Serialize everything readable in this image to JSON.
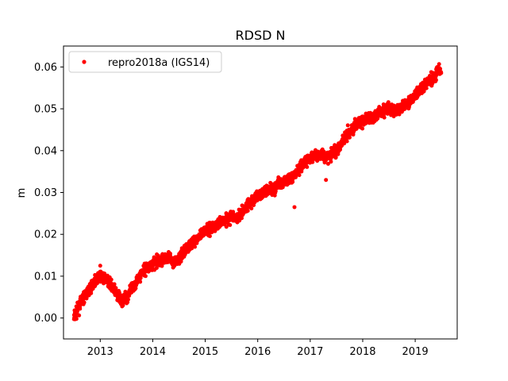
{
  "chart_data": {
    "type": "scatter",
    "title": "RDSD N",
    "xlabel": "",
    "ylabel": "m",
    "xlim": [
      2012.3,
      2019.8
    ],
    "ylim": [
      -0.005,
      0.065
    ],
    "x_ticks": [
      2013,
      2014,
      2015,
      2016,
      2017,
      2018,
      2019
    ],
    "x_tick_labels": [
      "2013",
      "2014",
      "2015",
      "2016",
      "2017",
      "2018",
      "2019"
    ],
    "y_ticks": [
      0.0,
      0.01,
      0.02,
      0.03,
      0.04,
      0.05,
      0.06
    ],
    "y_tick_labels": [
      "0.00",
      "0.01",
      "0.02",
      "0.03",
      "0.04",
      "0.05",
      "0.06"
    ],
    "grid": false,
    "legend_position": "top-left",
    "series": [
      {
        "name": "repro2018a (IGS14)",
        "color": "#ff0000",
        "marker": "circle",
        "x": [
          2012.5,
          2012.6,
          2012.7,
          2012.8,
          2012.9,
          2013.0,
          2013.1,
          2013.2,
          2013.3,
          2013.4,
          2013.5,
          2013.6,
          2013.7,
          2013.8,
          2013.9,
          2014.0,
          2014.1,
          2014.2,
          2014.3,
          2014.4,
          2014.5,
          2014.6,
          2014.7,
          2014.8,
          2014.9,
          2015.0,
          2015.1,
          2015.2,
          2015.3,
          2015.4,
          2015.5,
          2015.6,
          2015.7,
          2015.8,
          2015.9,
          2016.0,
          2016.1,
          2016.2,
          2016.3,
          2016.4,
          2016.5,
          2016.6,
          2016.7,
          2016.8,
          2016.9,
          2017.0,
          2017.1,
          2017.2,
          2017.3,
          2017.4,
          2017.5,
          2017.6,
          2017.7,
          2017.8,
          2017.9,
          2018.0,
          2018.1,
          2018.2,
          2018.3,
          2018.4,
          2018.5,
          2018.6,
          2018.7,
          2018.8,
          2018.9,
          2019.0,
          2019.1,
          2019.2,
          2019.3,
          2019.4
        ],
        "y": [
          0.0,
          0.003,
          0.005,
          0.007,
          0.009,
          0.01,
          0.0095,
          0.008,
          0.006,
          0.004,
          0.005,
          0.007,
          0.009,
          0.011,
          0.012,
          0.013,
          0.0135,
          0.014,
          0.0145,
          0.0135,
          0.014,
          0.016,
          0.017,
          0.0185,
          0.0195,
          0.021,
          0.0215,
          0.022,
          0.023,
          0.0235,
          0.024,
          0.024,
          0.025,
          0.027,
          0.028,
          0.029,
          0.03,
          0.031,
          0.031,
          0.032,
          0.0325,
          0.033,
          0.034,
          0.036,
          0.0375,
          0.038,
          0.039,
          0.039,
          0.0385,
          0.039,
          0.04,
          0.042,
          0.044,
          0.045,
          0.0465,
          0.047,
          0.0475,
          0.048,
          0.049,
          0.0495,
          0.05,
          0.0495,
          0.05,
          0.051,
          0.052,
          0.053,
          0.0545,
          0.056,
          0.057,
          0.058
        ],
        "outliers": [
          {
            "x": 2016.7,
            "y": 0.0265
          },
          {
            "x": 2017.3,
            "y": 0.033
          },
          {
            "x": 2013.0,
            "y": 0.0125
          }
        ]
      }
    ]
  }
}
